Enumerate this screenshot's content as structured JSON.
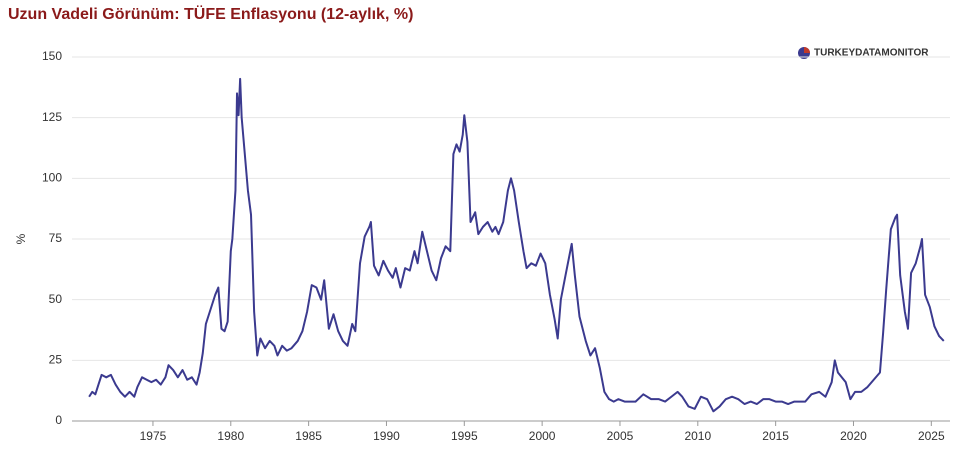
{
  "chart_data": {
    "type": "line",
    "title": "Uzun Vadeli Görünüm: TÜFE Enflasyonu (12-aylık, %)",
    "y_label": "%",
    "logo": "TURKEYDATAMONITOR",
    "x": [
      1970.9,
      1971.1,
      1971.3,
      1971.5,
      1971.7,
      1972.0,
      1972.3,
      1972.6,
      1972.9,
      1973.2,
      1973.5,
      1973.8,
      1974.0,
      1974.3,
      1974.6,
      1974.9,
      1975.2,
      1975.5,
      1975.8,
      1976.0,
      1976.3,
      1976.6,
      1976.9,
      1977.2,
      1977.5,
      1977.8,
      1978.0,
      1978.2,
      1978.4,
      1978.7,
      1979.0,
      1979.2,
      1979.4,
      1979.6,
      1979.8,
      1980.0,
      1980.1,
      1980.3,
      1980.4,
      1980.5,
      1980.6,
      1980.7,
      1980.9,
      1981.1,
      1981.3,
      1981.5,
      1981.7,
      1981.9,
      1982.2,
      1982.5,
      1982.8,
      1983.0,
      1983.3,
      1983.6,
      1983.9,
      1984.3,
      1984.6,
      1984.9,
      1985.2,
      1985.5,
      1985.8,
      1986.0,
      1986.3,
      1986.6,
      1986.9,
      1987.2,
      1987.5,
      1987.8,
      1988.0,
      1988.3,
      1988.6,
      1988.9,
      1989.0,
      1989.2,
      1989.5,
      1989.8,
      1990.1,
      1990.4,
      1990.6,
      1990.9,
      1991.2,
      1991.5,
      1991.8,
      1992.0,
      1992.3,
      1992.6,
      1992.9,
      1993.2,
      1993.5,
      1993.8,
      1994.1,
      1994.3,
      1994.5,
      1994.7,
      1994.9,
      1995.0,
      1995.2,
      1995.4,
      1995.7,
      1995.9,
      1996.2,
      1996.5,
      1996.8,
      1997.0,
      1997.2,
      1997.5,
      1997.8,
      1998.0,
      1998.2,
      1998.5,
      1998.8,
      1999.0,
      1999.3,
      1999.6,
      1999.9,
      2000.2,
      2000.5,
      2000.8,
      2001.0,
      2001.2,
      2001.5,
      2001.9,
      2002.1,
      2002.4,
      2002.8,
      2003.1,
      2003.4,
      2003.7,
      2004.0,
      2004.3,
      2004.6,
      2004.9,
      2005.3,
      2005.7,
      2006.0,
      2006.5,
      2007.0,
      2007.5,
      2007.9,
      2008.3,
      2008.7,
      2009.0,
      2009.4,
      2009.8,
      2010.2,
      2010.6,
      2011.0,
      2011.4,
      2011.8,
      2012.2,
      2012.6,
      2013.0,
      2013.4,
      2013.8,
      2014.2,
      2014.6,
      2015.0,
      2015.4,
      2015.8,
      2016.2,
      2016.6,
      2016.9,
      2017.3,
      2017.8,
      2018.2,
      2018.6,
      2018.8,
      2019.0,
      2019.5,
      2019.8,
      2020.1,
      2020.5,
      2020.9,
      2021.3,
      2021.7,
      2021.9,
      2022.1,
      2022.4,
      2022.7,
      2022.8,
      2023.0,
      2023.3,
      2023.5,
      2023.7,
      2024.0,
      2024.3,
      2024.4,
      2024.6,
      2024.9,
      2025.2,
      2025.5,
      2025.8
    ],
    "series": [
      {
        "name": "TÜFE",
        "color": "#3b3a8f",
        "values": [
          10,
          12,
          11,
          15,
          19,
          18,
          19,
          15,
          12,
          10,
          12,
          10,
          14,
          18,
          17,
          16,
          17,
          15,
          18,
          23,
          21,
          18,
          21,
          17,
          18,
          15,
          20,
          28,
          40,
          46,
          52,
          55,
          38,
          37,
          41,
          70,
          75,
          95,
          135,
          126,
          141,
          125,
          110,
          95,
          85,
          45,
          27,
          34,
          30,
          33,
          31,
          27,
          31,
          29,
          30,
          33,
          37,
          45,
          56,
          55,
          50,
          58,
          38,
          44,
          37,
          33,
          31,
          40,
          37,
          65,
          76,
          80,
          82,
          64,
          60,
          66,
          62,
          59,
          63,
          55,
          63,
          62,
          70,
          65,
          78,
          70,
          62,
          58,
          67,
          72,
          70,
          110,
          114,
          111,
          118,
          126,
          115,
          82,
          86,
          77,
          80,
          82,
          78,
          80,
          77,
          82,
          95,
          100,
          95,
          82,
          70,
          63,
          65,
          64,
          69,
          65,
          52,
          42,
          34,
          50,
          60,
          73,
          60,
          43,
          33,
          27,
          30,
          22,
          12,
          9,
          8,
          9,
          8,
          8,
          8,
          11,
          9,
          9,
          8,
          10,
          12,
          10,
          6,
          5,
          10,
          9,
          4,
          6,
          9,
          10,
          9,
          7,
          8,
          7,
          9,
          9,
          8,
          8,
          7,
          8,
          8,
          8,
          11,
          12,
          10,
          16,
          25,
          20,
          16,
          9,
          12,
          12,
          14,
          17,
          20,
          36,
          54,
          79,
          84,
          85,
          60,
          45,
          38,
          61,
          65,
          72,
          75,
          52,
          47,
          39,
          35,
          33
        ]
      }
    ],
    "xlim": [
      1969.8,
      2026.2
    ],
    "ylim": [
      0,
      150
    ],
    "xticks": [
      1975,
      1980,
      1985,
      1990,
      1995,
      2000,
      2005,
      2010,
      2015,
      2020,
      2025
    ],
    "yticks": [
      0,
      25,
      50,
      75,
      100,
      125,
      150
    ],
    "grid": true
  }
}
